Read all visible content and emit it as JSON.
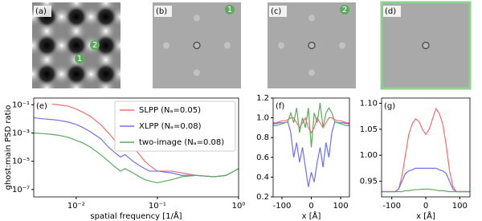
{
  "chart_data": [
    {
      "type": "image",
      "label": "(a)",
      "markers": [
        "2",
        "1"
      ]
    },
    {
      "type": "image",
      "label": "(b)",
      "markers": [
        "1"
      ]
    },
    {
      "type": "image",
      "label": "(c)",
      "markers": [
        "2"
      ]
    },
    {
      "type": "image",
      "label": "(d)",
      "markers": [],
      "border_color": "#8fd08f"
    },
    {
      "type": "line",
      "label": "(e)",
      "xscale": "log",
      "yscale": "log",
      "xlabel": "spatial frequency [1/Å]",
      "ylabel": "ghost:main PSD ratio",
      "xlim": [
        0.003,
        1
      ],
      "ylim": [
        3e-08,
        0.3
      ],
      "xticks": [
        {
          "value": 0.01,
          "label": "10⁻²"
        },
        {
          "value": 0.1,
          "label": "10⁻¹"
        },
        {
          "value": 1,
          "label": "10⁰"
        }
      ],
      "yticks": [
        {
          "value": 0.1,
          "label": "10⁻¹"
        },
        {
          "value": 0.001,
          "label": "10⁻³"
        },
        {
          "value": 1e-05,
          "label": "10⁻⁵"
        },
        {
          "value": 1e-07,
          "label": "10⁻⁷"
        }
      ],
      "legend": "upper right",
      "x": [
        0.003,
        0.004,
        0.005,
        0.006,
        0.008,
        0.01,
        0.012,
        0.015,
        0.02,
        0.025,
        0.03,
        0.035,
        0.04,
        0.05,
        0.06,
        0.07,
        0.08,
        0.1,
        0.15,
        0.2,
        0.3,
        0.5,
        0.7,
        1.0
      ],
      "series": [
        {
          "name": "SLPP (Nₐ=0.05)",
          "color": "#f07070",
          "values": [
            0.12,
            0.12,
            0.11,
            0.1,
            0.08,
            0.05,
            0.03,
            0.015,
            0.004,
            0.001,
            0.0003,
            0.0001,
            0.0003,
            0.0001,
            3e-05,
            1e-05,
            5e-06,
            2e-06,
            2e-06,
            1.5e-06,
            1e-06,
            8e-07,
            1e-06,
            3e-06
          ]
        },
        {
          "name": "XLPP (Nₐ=0.08)",
          "color": "#7070f0",
          "values": [
            0.012,
            0.01,
            0.009,
            0.008,
            0.006,
            0.004,
            0.0025,
            0.0012,
            0.0004,
            0.0001,
            4e-05,
            2e-05,
            3e-05,
            1e-05,
            5e-06,
            3e-06,
            2e-06,
            2e-06,
            1.5e-06,
            1e-06,
            1e-06,
            8e-07,
            1e-06,
            3e-06
          ]
        },
        {
          "name": "two-image (Nₐ=0.08)",
          "color": "#60a860",
          "values": [
            0.001,
            0.0009,
            0.0008,
            0.0007,
            0.0005,
            0.0003,
            0.0002,
            0.0001,
            3e-05,
            1e-05,
            4e-06,
            2e-06,
            3e-06,
            1.5e-06,
            8e-07,
            5e-07,
            4e-07,
            3e-07,
            5e-07,
            8e-07,
            1e-06,
            8e-07,
            1e-06,
            3e-06
          ]
        }
      ]
    },
    {
      "type": "line",
      "label": "(f)",
      "xlabel": "x [Å]",
      "xlim": [
        -130,
        130
      ],
      "ylim": [
        0.2,
        1.2
      ],
      "xticks": [
        -100,
        0,
        100
      ],
      "yticks": [
        0.2,
        0.4,
        0.6,
        0.8,
        {
          "value": 1,
          "label": "1.0"
        },
        1.2
      ],
      "x": [
        -130,
        -120,
        -110,
        -100,
        -90,
        -80,
        -70,
        -60,
        -50,
        -40,
        -30,
        -20,
        -10,
        0,
        10,
        20,
        30,
        40,
        50,
        60,
        70,
        80,
        90,
        100,
        110,
        120,
        130
      ],
      "series": [
        {
          "color": "#f07070",
          "values": [
            0.95,
            0.95,
            0.96,
            0.97,
            0.97,
            0.98,
            1.0,
            1.0,
            0.95,
            0.9,
            0.95,
            1.0,
            0.9,
            0.85,
            0.9,
            1.0,
            0.95,
            0.9,
            0.95,
            1.0,
            1.0,
            0.98,
            0.97,
            0.97,
            0.96,
            0.95,
            0.95
          ]
        },
        {
          "color": "#7070f0",
          "values": [
            0.94,
            0.94,
            0.95,
            0.95,
            0.95,
            0.96,
            0.85,
            0.6,
            0.75,
            0.55,
            0.7,
            0.5,
            0.3,
            0.45,
            0.35,
            0.55,
            0.7,
            0.5,
            0.75,
            0.6,
            0.85,
            0.96,
            0.95,
            0.95,
            0.95,
            0.94,
            0.94
          ]
        },
        {
          "color": "#60a860",
          "values": [
            0.92,
            0.92,
            0.93,
            0.94,
            0.95,
            0.96,
            1.05,
            0.95,
            1.1,
            0.85,
            1.0,
            0.9,
            1.1,
            0.7,
            1.05,
            0.95,
            1.15,
            0.9,
            1.05,
            1.1,
            1.05,
            0.96,
            0.95,
            0.94,
            0.93,
            0.92,
            0.92
          ]
        }
      ]
    },
    {
      "type": "line",
      "label": "(g)",
      "xlabel": "x [Å]",
      "xlim": [
        -130,
        130
      ],
      "ylim": [
        0.92,
        1.11
      ],
      "xticks": [
        -100,
        0,
        100
      ],
      "yticks": [
        0.95,
        {
          "value": 1,
          "label": "1.00"
        },
        1.05,
        {
          "value": 1.1,
          "label": "1.10"
        }
      ],
      "x": [
        -130,
        -120,
        -110,
        -100,
        -90,
        -80,
        -70,
        -60,
        -50,
        -40,
        -30,
        -20,
        -10,
        0,
        10,
        20,
        30,
        40,
        50,
        60,
        70,
        80,
        90,
        100,
        110,
        120,
        130
      ],
      "series": [
        {
          "color": "#f07070",
          "values": [
            0.93,
            0.93,
            0.93,
            0.93,
            0.93,
            0.935,
            0.96,
            1.0,
            1.04,
            1.06,
            1.07,
            1.065,
            1.05,
            1.04,
            1.05,
            1.07,
            1.09,
            1.08,
            1.06,
            1.02,
            0.97,
            0.94,
            0.93,
            0.93,
            0.93,
            0.93,
            0.93
          ]
        },
        {
          "color": "#7070f0",
          "values": [
            0.93,
            0.93,
            0.93,
            0.93,
            0.93,
            0.935,
            0.95,
            0.965,
            0.97,
            0.972,
            0.975,
            0.975,
            0.975,
            0.975,
            0.975,
            0.975,
            0.975,
            0.972,
            0.97,
            0.965,
            0.95,
            0.935,
            0.93,
            0.93,
            0.93,
            0.93,
            0.93
          ]
        },
        {
          "color": "#60a860",
          "values": [
            0.93,
            0.93,
            0.93,
            0.93,
            0.93,
            0.93,
            0.93,
            0.932,
            0.932,
            0.933,
            0.934,
            0.934,
            0.935,
            0.935,
            0.935,
            0.934,
            0.933,
            0.932,
            0.932,
            0.931,
            0.93,
            0.93,
            0.93,
            0.93,
            0.93,
            0.93,
            0.93
          ]
        }
      ]
    }
  ]
}
